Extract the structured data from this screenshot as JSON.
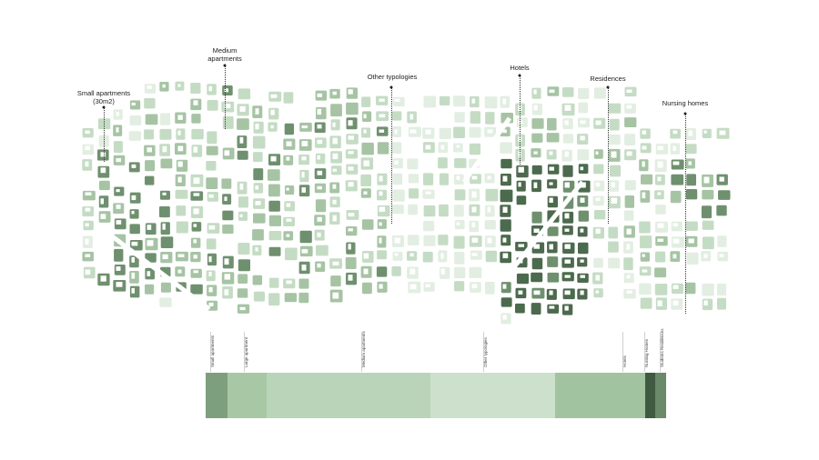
{
  "callouts": [
    {
      "label": "Small apartments\n(30m2)"
    },
    {
      "label": "Medium\napartments"
    },
    {
      "label": "Other typologies"
    },
    {
      "label": "Hotels"
    },
    {
      "label": "Residences"
    },
    {
      "label": "Nursing homes"
    }
  ],
  "bar": {
    "segments": [
      {
        "label": "Small apartments",
        "color": "#7e9f7e"
      },
      {
        "label": "Large apartment",
        "color": "#a7c7a5"
      },
      {
        "label": "Medium apartments",
        "color": "#b9d4b8"
      },
      {
        "label": "Other typologies",
        "color": "#cde0cc"
      },
      {
        "label": "Hotels",
        "color": "#a2c3a0"
      },
      {
        "label": "Nursing Homes",
        "color": "#3f5a40"
      },
      {
        "label": "Students Residences",
        "color": "#6a8a6a"
      }
    ]
  },
  "colors": {
    "very_light": "#e3eee2",
    "light": "#c5dcc4",
    "medium": "#a6c4a4",
    "dark": "#6f906f",
    "darkest": "#4c6a4d"
  }
}
